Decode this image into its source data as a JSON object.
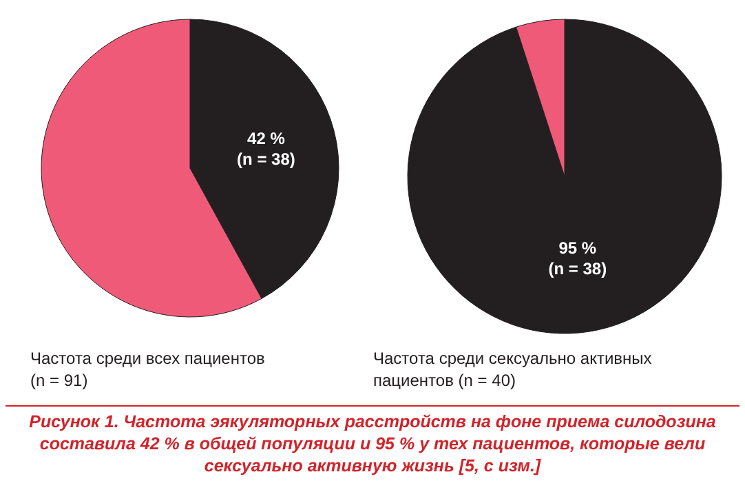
{
  "chart_data": [
    {
      "type": "pie",
      "title": "Частота среди всех пациентов (n = 91)",
      "categories": [
        null,
        null
      ],
      "values": [
        42,
        58
      ],
      "colors": [
        "#231f20",
        "#ee5a78"
      ],
      "value_labels": [
        "42 %\n(n = 38)",
        null
      ],
      "annotations": [
        "Рисунок 1. Частота эякуляторных расстройств на фоне приема силодозина составила 42 % в общей популяции  и 95 % у тех пациентов, которые вели сексуально активную жизнь [5, с изм.]"
      ]
    },
    {
      "type": "pie",
      "title": "Частота среди сексуально активных пациентов (n = 40)",
      "categories": [
        null,
        null
      ],
      "values": [
        95,
        5
      ],
      "colors": [
        "#231f20",
        "#ee5a78"
      ],
      "value_labels": [
        "95 %\n(n = 38)",
        null
      ]
    }
  ]
}
